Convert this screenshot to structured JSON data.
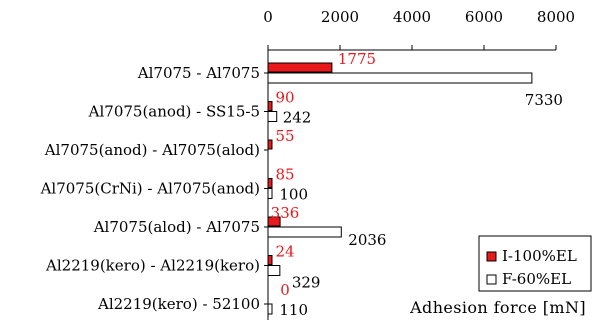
{
  "chart_data": {
    "type": "bar",
    "orientation": "horizontal",
    "categories": [
      "Al7075 - Al7075",
      "Al7075(anod) - SS15-5",
      "Al7075(anod) - Al7075(alod)",
      "Al7075(CrNi) - Al7075(anod)",
      "Al7075(alod) - Al7075",
      "Al2219(kero) - Al2219(kero)",
      "Al2219(kero) - 52100"
    ],
    "series": [
      {
        "name": "I-100%EL",
        "values": [
          1775,
          90,
          55,
          85,
          336,
          24,
          0
        ],
        "labels": [
          "1775",
          "90",
          "55",
          "85",
          "336",
          "24",
          "0"
        ],
        "fill": "#e8191c",
        "label_color": "#e8191c"
      },
      {
        "name": "F-60%EL",
        "values": [
          7330,
          242,
          null,
          100,
          2036,
          329,
          110
        ],
        "labels": [
          "7330",
          "242",
          "",
          "100",
          "2036",
          "329",
          "110"
        ],
        "fill": "#ffffff",
        "label_color": "#000000"
      }
    ],
    "xlabel": "Adhesion force [mN]",
    "xlim": [
      0,
      8000
    ],
    "xticks": [
      "0",
      "2000",
      "4000",
      "6000",
      "8000"
    ],
    "x_axis_position": "top",
    "grid": false,
    "legend_position": "bottom-right"
  }
}
